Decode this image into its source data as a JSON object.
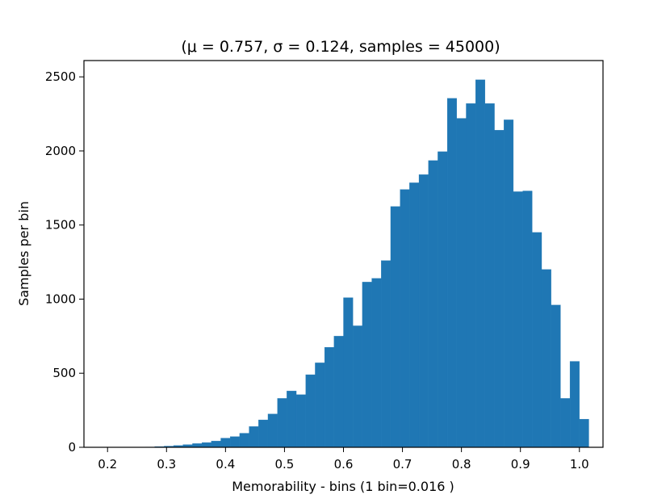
{
  "chart_data": {
    "type": "bar",
    "title": "(μ = 0.757, σ = 0.124, samples = 45000)",
    "xlabel": "Memorability - bins (1 bin=0.016 )",
    "ylabel": "Samples per bin",
    "xlim": [
      0.16,
      1.04
    ],
    "ylim": [
      0,
      2500
    ],
    "x_ticks": [
      0.2,
      0.3,
      0.4,
      0.5,
      0.6,
      0.7,
      0.8,
      0.9,
      1.0
    ],
    "x_tick_labels": [
      "0.2",
      "0.3",
      "0.4",
      "0.5",
      "0.6",
      "0.7",
      "0.8",
      "0.9",
      "1.0"
    ],
    "y_ticks": [
      0,
      500,
      1000,
      1500,
      2000,
      2500
    ],
    "y_tick_labels": [
      "0",
      "500",
      "1000",
      "1500",
      "2000",
      "2500"
    ],
    "bar_color": "#1f77b4",
    "bin_start": 0.2,
    "bin_width": 0.016,
    "values": [
      0,
      0,
      0,
      0,
      2,
      5,
      8,
      12,
      18,
      25,
      32,
      42,
      62,
      72,
      95,
      140,
      185,
      225,
      330,
      380,
      355,
      490,
      570,
      675,
      750,
      1010,
      820,
      1115,
      1140,
      1260,
      1625,
      1740,
      1785,
      1840,
      1935,
      1995,
      2355,
      2220,
      2320,
      2480,
      2320,
      2140,
      2210,
      1725,
      1730,
      1450,
      1200,
      960,
      330,
      580,
      190
    ]
  }
}
